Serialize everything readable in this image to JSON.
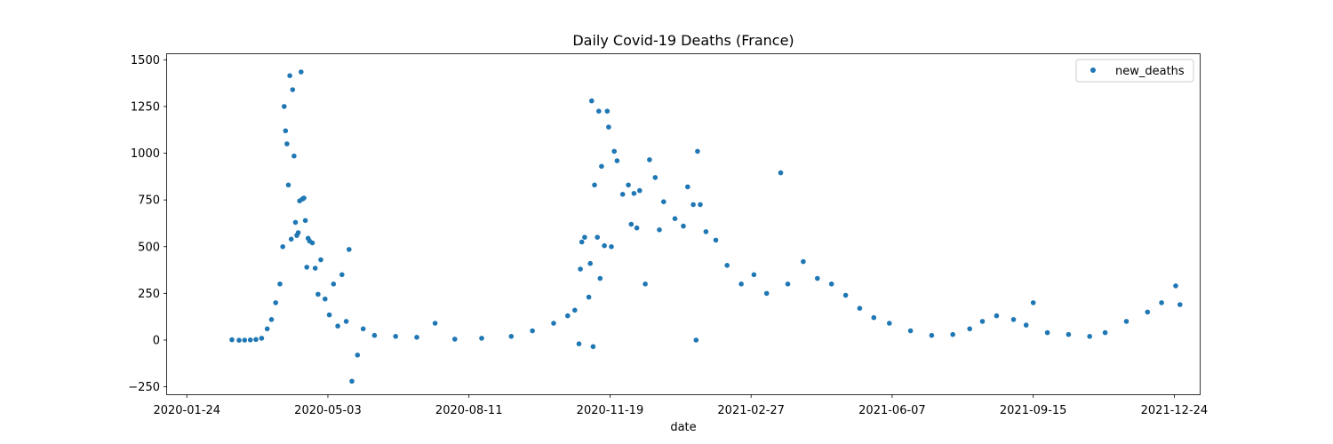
{
  "chart_data": {
    "type": "scatter",
    "title": "Daily Covid-19 Deaths (France)",
    "xlabel": "date",
    "ylabel": "",
    "x_type": "date",
    "xlim": [
      "2020-01-10",
      "2022-01-11"
    ],
    "ylim": [
      -290,
      1530
    ],
    "x_ticks": [
      "2020-01-24",
      "2020-05-03",
      "2020-08-11",
      "2020-11-19",
      "2021-02-27",
      "2021-06-07",
      "2021-09-15",
      "2021-12-24"
    ],
    "y_ticks": [
      -250,
      0,
      250,
      500,
      750,
      1000,
      1250,
      1500
    ],
    "grid": false,
    "legend": {
      "position": "top-right",
      "entries": [
        "new_deaths"
      ]
    },
    "colors": {
      "series": "#1f77b4",
      "axes": "#000000"
    },
    "series": [
      {
        "name": "new_deaths",
        "marker": "dot",
        "points": [
          [
            "2020-02-25",
            2
          ],
          [
            "2020-03-01",
            -1
          ],
          [
            "2020-03-05",
            0
          ],
          [
            "2020-03-09",
            1
          ],
          [
            "2020-03-13",
            3
          ],
          [
            "2020-03-17",
            10
          ],
          [
            "2020-03-21",
            60
          ],
          [
            "2020-03-24",
            110
          ],
          [
            "2020-03-27",
            200
          ],
          [
            "2020-03-30",
            300
          ],
          [
            "2020-04-01",
            500
          ],
          [
            "2020-04-02",
            1250
          ],
          [
            "2020-04-03",
            1120
          ],
          [
            "2020-04-04",
            1050
          ],
          [
            "2020-04-05",
            830
          ],
          [
            "2020-04-06",
            1415
          ],
          [
            "2020-04-07",
            540
          ],
          [
            "2020-04-08",
            1340
          ],
          [
            "2020-04-09",
            985
          ],
          [
            "2020-04-10",
            630
          ],
          [
            "2020-04-11",
            560
          ],
          [
            "2020-04-12",
            575
          ],
          [
            "2020-04-13",
            745
          ],
          [
            "2020-04-14",
            1435
          ],
          [
            "2020-04-15",
            755
          ],
          [
            "2020-04-16",
            760
          ],
          [
            "2020-04-17",
            640
          ],
          [
            "2020-04-18",
            390
          ],
          [
            "2020-04-19",
            545
          ],
          [
            "2020-04-20",
            530
          ],
          [
            "2020-04-22",
            520
          ],
          [
            "2020-04-24",
            385
          ],
          [
            "2020-04-26",
            245
          ],
          [
            "2020-04-28",
            430
          ],
          [
            "2020-05-01",
            220
          ],
          [
            "2020-05-04",
            135
          ],
          [
            "2020-05-07",
            300
          ],
          [
            "2020-05-10",
            75
          ],
          [
            "2020-05-13",
            350
          ],
          [
            "2020-05-16",
            100
          ],
          [
            "2020-05-18",
            485
          ],
          [
            "2020-05-20",
            -220
          ],
          [
            "2020-05-24",
            -80
          ],
          [
            "2020-05-28",
            60
          ],
          [
            "2020-06-05",
            25
          ],
          [
            "2020-06-20",
            20
          ],
          [
            "2020-07-05",
            15
          ],
          [
            "2020-07-18",
            90
          ],
          [
            "2020-08-01",
            5
          ],
          [
            "2020-08-20",
            10
          ],
          [
            "2020-09-10",
            20
          ],
          [
            "2020-09-25",
            50
          ],
          [
            "2020-10-10",
            90
          ],
          [
            "2020-10-20",
            130
          ],
          [
            "2020-10-25",
            160
          ],
          [
            "2020-10-28",
            -20
          ],
          [
            "2020-10-29",
            380
          ],
          [
            "2020-10-30",
            525
          ],
          [
            "2020-11-01",
            550
          ],
          [
            "2020-11-04",
            230
          ],
          [
            "2020-11-05",
            410
          ],
          [
            "2020-11-06",
            1280
          ],
          [
            "2020-11-07",
            -35
          ],
          [
            "2020-11-08",
            830
          ],
          [
            "2020-11-10",
            550
          ],
          [
            "2020-11-11",
            1225
          ],
          [
            "2020-11-12",
            330
          ],
          [
            "2020-11-13",
            930
          ],
          [
            "2020-11-15",
            505
          ],
          [
            "2020-11-17",
            1225
          ],
          [
            "2020-11-18",
            1140
          ],
          [
            "2020-11-20",
            500
          ],
          [
            "2020-11-22",
            1010
          ],
          [
            "2020-11-24",
            960
          ],
          [
            "2020-11-28",
            780
          ],
          [
            "2020-12-02",
            830
          ],
          [
            "2020-12-04",
            620
          ],
          [
            "2020-12-06",
            785
          ],
          [
            "2020-12-08",
            600
          ],
          [
            "2020-12-10",
            800
          ],
          [
            "2020-12-14",
            300
          ],
          [
            "2020-12-17",
            965
          ],
          [
            "2020-12-21",
            870
          ],
          [
            "2020-12-24",
            590
          ],
          [
            "2020-12-27",
            740
          ],
          [
            "2021-01-04",
            650
          ],
          [
            "2021-01-10",
            610
          ],
          [
            "2021-01-13",
            820
          ],
          [
            "2021-01-17",
            725
          ],
          [
            "2021-01-19",
            0
          ],
          [
            "2021-01-20",
            1010
          ],
          [
            "2021-01-22",
            725
          ],
          [
            "2021-01-26",
            580
          ],
          [
            "2021-02-02",
            535
          ],
          [
            "2021-02-10",
            400
          ],
          [
            "2021-02-20",
            300
          ],
          [
            "2021-03-01",
            350
          ],
          [
            "2021-03-10",
            250
          ],
          [
            "2021-03-20",
            895
          ],
          [
            "2021-03-25",
            300
          ],
          [
            "2021-04-05",
            420
          ],
          [
            "2021-04-15",
            330
          ],
          [
            "2021-04-25",
            300
          ],
          [
            "2021-05-05",
            240
          ],
          [
            "2021-05-15",
            170
          ],
          [
            "2021-05-25",
            120
          ],
          [
            "2021-06-05",
            90
          ],
          [
            "2021-06-20",
            50
          ],
          [
            "2021-07-05",
            25
          ],
          [
            "2021-07-20",
            30
          ],
          [
            "2021-08-01",
            60
          ],
          [
            "2021-08-10",
            100
          ],
          [
            "2021-08-20",
            130
          ],
          [
            "2021-09-01",
            110
          ],
          [
            "2021-09-10",
            80
          ],
          [
            "2021-09-15",
            200
          ],
          [
            "2021-09-25",
            40
          ],
          [
            "2021-10-10",
            30
          ],
          [
            "2021-10-25",
            20
          ],
          [
            "2021-11-05",
            40
          ],
          [
            "2021-11-20",
            100
          ],
          [
            "2021-12-05",
            150
          ],
          [
            "2021-12-15",
            200
          ],
          [
            "2021-12-25",
            290
          ],
          [
            "2021-12-28",
            190
          ]
        ]
      }
    ]
  }
}
